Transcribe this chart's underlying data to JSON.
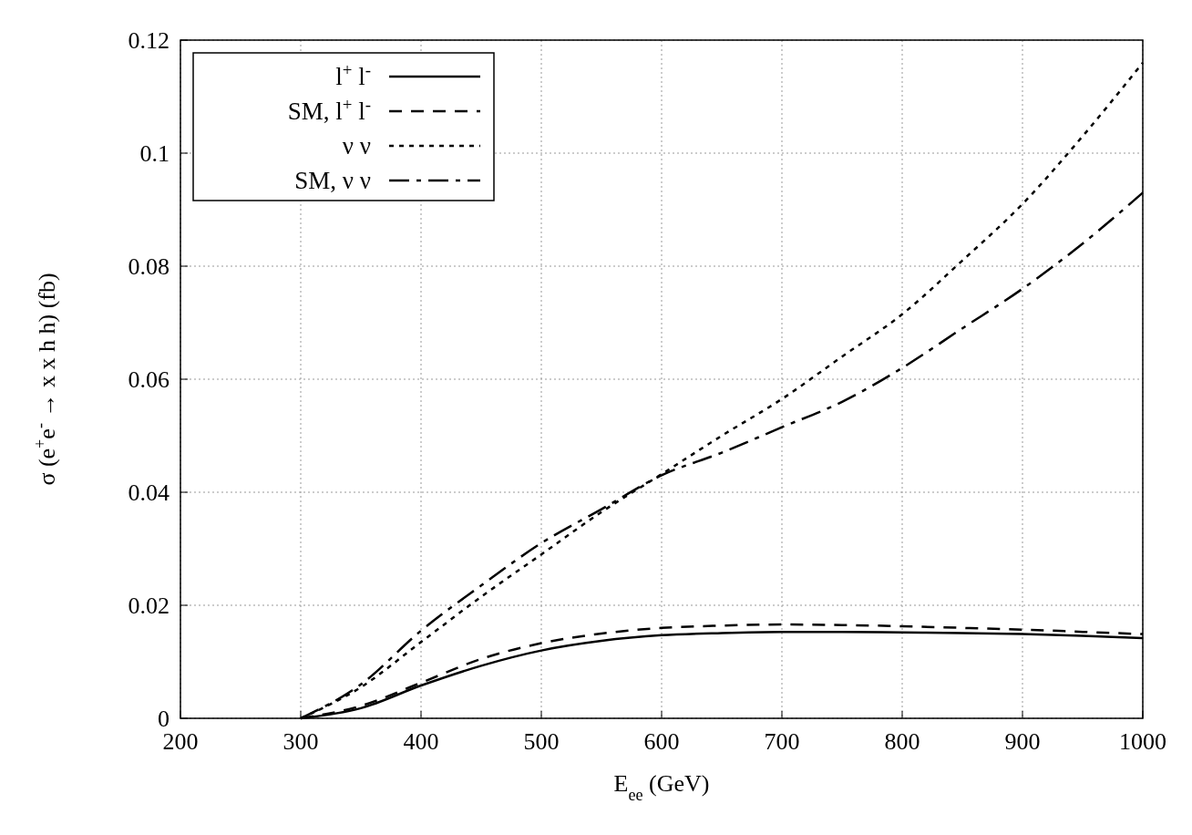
{
  "chart_data": {
    "type": "line",
    "xlabel": "E$_{ee}$ (GeV)",
    "ylabel": "σ (e$^{+}$e$^{-}$ → x x h h) (fb)",
    "x": [
      300,
      350,
      400,
      450,
      500,
      550,
      600,
      650,
      700,
      750,
      800,
      850,
      900,
      950,
      1000
    ],
    "xlim": [
      200,
      1000
    ],
    "xticks": [
      200,
      300,
      400,
      500,
      600,
      700,
      800,
      900,
      1000
    ],
    "ylim": [
      0,
      0.12
    ],
    "yticks": [
      0,
      0.02,
      0.04,
      0.06,
      0.08,
      0.1,
      0.12
    ],
    "grid": true,
    "legend": "top left",
    "series": [
      {
        "name": "l$^{+}$ l$^{-}$",
        "color": "#000000",
        "line_style": "solid",
        "values": [
          0,
          0.0018,
          0.0058,
          0.0093,
          0.012,
          0.0137,
          0.0147,
          0.0151,
          0.0153,
          0.0153,
          0.0152,
          0.0151,
          0.0149,
          0.0146,
          0.0142
        ]
      },
      {
        "name": "SM, l$^{+}$ l$^{-}$",
        "color": "#000000",
        "line_style": "dashed",
        "values": [
          0,
          0.0022,
          0.0063,
          0.0105,
          0.0133,
          0.015,
          0.016,
          0.0164,
          0.0166,
          0.0165,
          0.0163,
          0.016,
          0.0157,
          0.0153,
          0.0149
        ]
      },
      {
        "name": "ν ν",
        "color": "#000000",
        "line_style": "dotted",
        "values": [
          0,
          0.0055,
          0.0135,
          0.0215,
          0.029,
          0.0365,
          0.0432,
          0.05,
          0.0565,
          0.064,
          0.0715,
          0.081,
          0.091,
          0.103,
          0.116
        ]
      },
      {
        "name": "SM, ν ν",
        "color": "#000000",
        "line_style": "dashdot",
        "values": [
          0,
          0.006,
          0.0155,
          0.0235,
          0.031,
          0.037,
          0.043,
          0.047,
          0.0515,
          0.056,
          0.062,
          0.069,
          0.076,
          0.084,
          0.093
        ]
      }
    ]
  }
}
